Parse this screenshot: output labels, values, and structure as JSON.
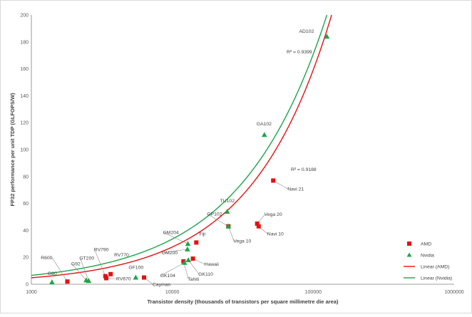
{
  "chart_data": {
    "type": "scatter",
    "title": "",
    "xlabel": "Transistor density (thousands of transistors per square millimetre die area)",
    "ylabel": "FP32 performance per unit TDP (GLFOPS/W)",
    "xscale": "log",
    "xlim": [
      1000,
      1000000
    ],
    "ylim": [
      0,
      200
    ],
    "x_ticks": [
      1000,
      10000,
      100000,
      1000000
    ],
    "x_tick_labels": [
      "1000",
      "10000",
      "100000",
      "1000000"
    ],
    "y_ticks": [
      0,
      20,
      40,
      60,
      80,
      100,
      120,
      140,
      160,
      180,
      200
    ],
    "grid": false,
    "legend_position": "right",
    "colors": {
      "amd": "#e8100f",
      "nvidia": "#1aa64a",
      "leader": "#8c8c8c"
    },
    "series": [
      {
        "name": "AMD",
        "marker": "square",
        "points": [
          {
            "label": "R600",
            "x": 1800,
            "y": 2
          },
          {
            "label": "RV670",
            "x": 3400,
            "y": 4.5
          },
          {
            "label": "RV790",
            "x": 3350,
            "y": 6
          },
          {
            "label": "RV770",
            "x": 3650,
            "y": 7.5
          },
          {
            "label": "Cayman",
            "x": 6300,
            "y": 5
          },
          {
            "label": "Tahiti",
            "x": 12000,
            "y": 17
          },
          {
            "label": "Hawaii",
            "x": 14000,
            "y": 19
          },
          {
            "label": "Fiji",
            "x": 14800,
            "y": 31
          },
          {
            "label": "Vega 10",
            "x": 25000,
            "y": 43
          },
          {
            "label": "Vega 20",
            "x": 40000,
            "y": 45
          },
          {
            "label": "Navi 10",
            "x": 41000,
            "y": 43
          },
          {
            "label": "Navi 21",
            "x": 52000,
            "y": 77
          }
        ]
      },
      {
        "name": "Nvidia",
        "marker": "triangle",
        "points": [
          {
            "label": "G80",
            "x": 1400,
            "y": 1.5
          },
          {
            "label": "G92",
            "x": 2450,
            "y": 3
          },
          {
            "label": "GT200",
            "x": 2550,
            "y": 2.5
          },
          {
            "label": "GF100",
            "x": 5500,
            "y": 5
          },
          {
            "label": "GK104",
            "x": 12200,
            "y": 16
          },
          {
            "label": "GK110",
            "x": 13000,
            "y": 18
          },
          {
            "label": "GM200",
            "x": 12800,
            "y": 26
          },
          {
            "label": "GM204",
            "x": 12900,
            "y": 30
          },
          {
            "label": "GP102",
            "x": 25000,
            "y": 43
          },
          {
            "label": "TU102",
            "x": 24500,
            "y": 54
          },
          {
            "label": "GA102",
            "x": 45000,
            "y": 111
          },
          {
            "label": "AD102",
            "x": 125000,
            "y": 184
          }
        ]
      }
    ],
    "trendlines": [
      {
        "name": "Linear (AMD)",
        "series": "AMD",
        "r2_label": "R² = 0.9188",
        "x_from": 1000,
        "x_to": 135000,
        "y_start": 4.8
      },
      {
        "name": "Linear (Nvidia)",
        "series": "Nvidia",
        "r2_label": "R² = 0.9399",
        "x_from": 1000,
        "x_to": 125000,
        "y_start": 6.6
      }
    ],
    "legend": [
      {
        "label": "AMD",
        "kind": "square",
        "series": "AMD"
      },
      {
        "label": "Nvidia",
        "kind": "triangle",
        "series": "Nvidia"
      },
      {
        "label": "Linear (AMD)",
        "kind": "line",
        "series": "AMD"
      },
      {
        "label": "Linear (Nvidia)",
        "kind": "line",
        "series": "Nvidia"
      }
    ]
  }
}
